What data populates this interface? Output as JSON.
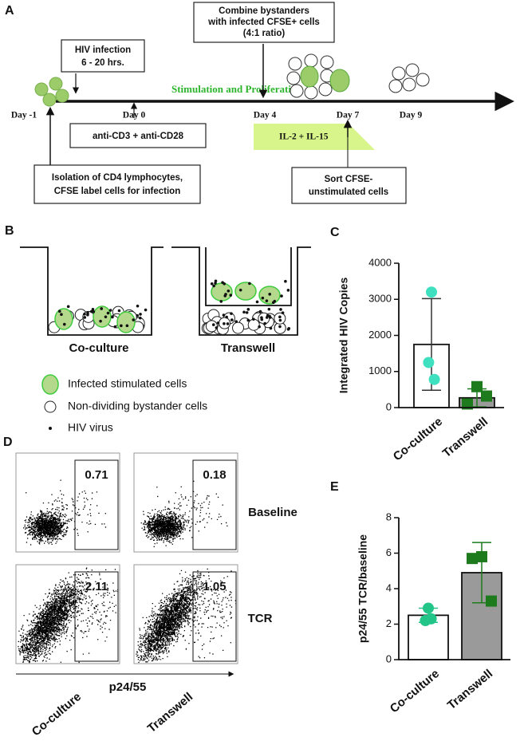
{
  "panel_a": {
    "label": "A",
    "days": [
      "Day -1",
      "Day 0",
      "Day 4",
      "Day 7",
      "Day 9"
    ],
    "infection_box": [
      "HIV infection",
      "6 - 20 hrs."
    ],
    "stimulation": "Stimulation and Proliferation",
    "antibody_box": "anti-CD3 + anti-CD28",
    "combine_box": [
      "Combine bystanders",
      "with infected CFSE+ cells",
      "(4:1 ratio)"
    ],
    "cytokines": "IL-2 + IL-15",
    "sort_box": [
      "Sort CFSE-",
      "unstimulated cells"
    ],
    "isolation_box": [
      "Isolation of CD4 lymphocytes,",
      "CFSE label cells for infection"
    ]
  },
  "panel_b": {
    "label": "B",
    "wells": [
      "Co-culture",
      "Transwell"
    ],
    "legend": [
      "Infected stimulated cells",
      "Non-dividing bystander cells",
      "HIV virus"
    ]
  },
  "panel_d": {
    "label": "D",
    "rows": [
      "Baseline",
      "TCR"
    ],
    "columns": [
      "Co-culture",
      "Transwell"
    ],
    "gates": [
      [
        0.71,
        0.18
      ],
      [
        2.11,
        1.05
      ]
    ],
    "x_label": "p24/55"
  },
  "chart_data": [
    {
      "type": "bar",
      "label": "C",
      "y_label": "Integrated  HIV Copies",
      "categories": [
        "Co-culture",
        "Transwell"
      ],
      "values": [
        1750,
        270
      ],
      "errors": [
        1270,
        250
      ],
      "points": [
        [
          3200,
          1250,
          780
        ],
        [
          580,
          100,
          320
        ]
      ],
      "bar_colors": [
        "#ffffff",
        "#9a9a9a"
      ],
      "point_colors": [
        "#3ee0c0",
        "#1d7a1d"
      ],
      "point_shapes": [
        "circle",
        "square"
      ],
      "ylim": [
        0,
        4000
      ],
      "yticks": [
        0,
        1000,
        2000,
        3000,
        4000
      ]
    },
    {
      "type": "bar",
      "label": "E",
      "y_label": "p24/55 TCR/baseline",
      "categories": [
        "Co-culture",
        "Transwell"
      ],
      "values": [
        2.5,
        4.9
      ],
      "errors": [
        0.4,
        1.7
      ],
      "points": [
        [
          2.9,
          2.2,
          2.3
        ],
        [
          5.8,
          5.7,
          3.3
        ]
      ],
      "bar_colors": [
        "#ffffff",
        "#9a9a9a"
      ],
      "point_colors": [
        "#22c488",
        "#1d7a1d"
      ],
      "point_shapes": [
        "circle",
        "square"
      ],
      "ylim": [
        0,
        8
      ],
      "yticks": [
        0,
        2,
        4,
        6,
        8
      ]
    }
  ]
}
